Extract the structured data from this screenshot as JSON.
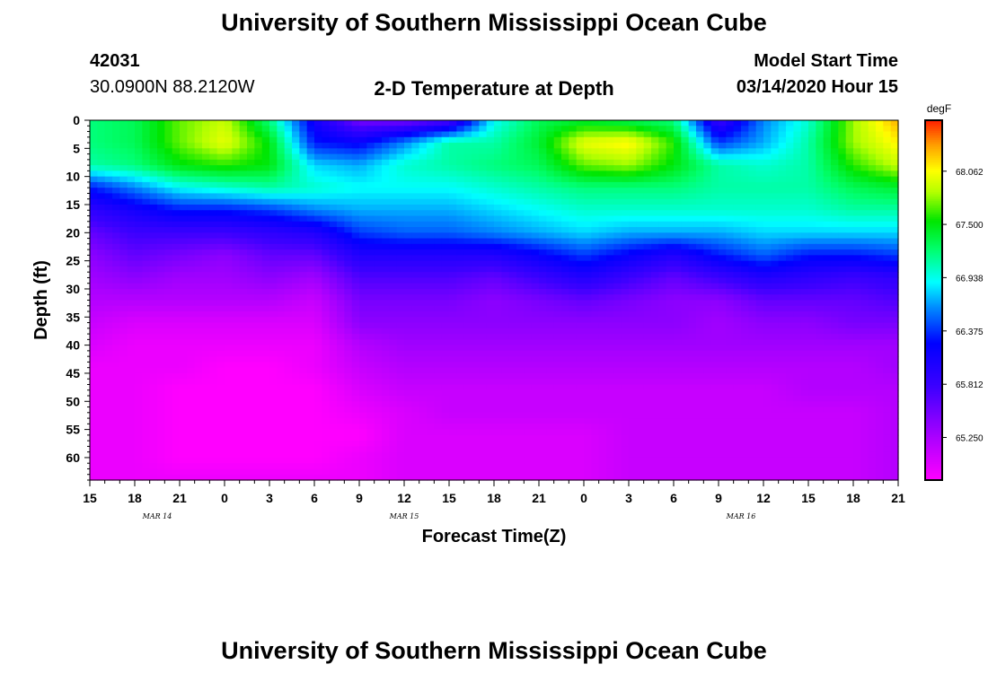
{
  "page": {
    "title_top": "University of Southern Mississippi Ocean Cube",
    "title_bottom": "University of Southern Mississippi Ocean Cube",
    "station_id": "42031",
    "location": "30.0900N 88.2120W",
    "plot_title": "2-D Temperature at Depth",
    "model_start_label": "Model Start Time",
    "model_start_value": "03/14/2020 Hour 15"
  },
  "chart_data": {
    "type": "heatmap",
    "title": "2-D Temperature at Depth",
    "xlabel": "Forecast Time(Z)",
    "ylabel": "Depth (ft)",
    "x_range_hours": [
      0,
      54
    ],
    "y_range_ft": [
      0,
      64
    ],
    "x_tick_labels": [
      "15",
      "18",
      "21",
      "0",
      "3",
      "6",
      "9",
      "12",
      "15",
      "18",
      "21",
      "0",
      "3",
      "6",
      "9",
      "12",
      "15",
      "18",
      "21"
    ],
    "x_day_labels": [
      {
        "label": "MAR 14",
        "hour": 4.5
      },
      {
        "label": "MAR 15",
        "hour": 21
      },
      {
        "label": "MAR 16",
        "hour": 43.5
      }
    ],
    "y_ticks": [
      0,
      5,
      10,
      15,
      20,
      25,
      30,
      35,
      40,
      45,
      50,
      55,
      60
    ],
    "colorbar": {
      "unit": "degF",
      "min": 64.8,
      "max": 68.6,
      "labels": [
        "68.062",
        "67.500",
        "66.938",
        "66.375",
        "65.812",
        "65.250"
      ]
    },
    "sample_hours": [
      0,
      3,
      6,
      9,
      12,
      15,
      18,
      21,
      24,
      27,
      30,
      33,
      36,
      39,
      42,
      45,
      48,
      51,
      54
    ],
    "sample_depths_ft": [
      0,
      4,
      8,
      12,
      16,
      20,
      24,
      28,
      32,
      36,
      40,
      44,
      48,
      52,
      56,
      60,
      64
    ],
    "values_degF": [
      [
        67.2,
        67.3,
        67.7,
        67.9,
        67.2,
        66.1,
        65.5,
        65.5,
        65.7,
        66.9,
        67.3,
        67.4,
        67.3,
        67.2,
        65.8,
        66.6,
        67.0,
        67.8,
        68.3
      ],
      [
        67.2,
        67.3,
        67.7,
        68.0,
        67.5,
        66.3,
        66.2,
        66.6,
        67.1,
        67.1,
        67.4,
        68.0,
        68.1,
        67.6,
        66.4,
        66.7,
        67.1,
        67.8,
        68.1
      ],
      [
        67.1,
        67.2,
        67.5,
        67.6,
        67.5,
        66.8,
        66.7,
        67.0,
        67.1,
        67.2,
        67.3,
        67.7,
        67.8,
        67.5,
        67.1,
        67.0,
        67.1,
        67.6,
        67.9
      ],
      [
        66.3,
        66.6,
        66.9,
        67.0,
        67.1,
        67.0,
        66.9,
        66.9,
        66.9,
        67.0,
        67.1,
        67.2,
        67.2,
        67.2,
        67.1,
        67.1,
        67.1,
        67.3,
        67.4
      ],
      [
        65.9,
        66.1,
        66.3,
        66.3,
        66.4,
        66.6,
        66.7,
        66.7,
        66.7,
        66.8,
        66.9,
        67.0,
        67.0,
        67.0,
        67.0,
        67.0,
        67.0,
        67.1,
        67.1
      ],
      [
        65.6,
        65.8,
        65.8,
        65.8,
        65.9,
        66.0,
        66.4,
        66.5,
        66.5,
        66.6,
        66.7,
        66.8,
        66.7,
        66.7,
        66.7,
        66.8,
        66.8,
        66.8,
        66.8
      ],
      [
        65.4,
        65.6,
        65.5,
        65.4,
        65.6,
        65.6,
        66.0,
        66.0,
        66.0,
        66.0,
        66.2,
        66.4,
        66.2,
        66.0,
        66.3,
        66.5,
        66.3,
        66.3,
        66.4
      ],
      [
        65.3,
        65.4,
        65.3,
        65.3,
        65.4,
        65.3,
        65.7,
        65.7,
        65.7,
        65.6,
        65.8,
        66.0,
        65.8,
        65.6,
        65.8,
        66.0,
        65.9,
        65.8,
        65.9
      ],
      [
        65.2,
        65.2,
        65.2,
        65.2,
        65.2,
        65.1,
        65.5,
        65.5,
        65.5,
        65.4,
        65.5,
        65.6,
        65.5,
        65.4,
        65.4,
        65.6,
        65.6,
        65.6,
        65.7
      ],
      [
        65.1,
        65.0,
        65.0,
        65.0,
        65.0,
        65.0,
        65.4,
        65.4,
        65.4,
        65.4,
        65.4,
        65.4,
        65.4,
        65.4,
        65.3,
        65.4,
        65.4,
        65.5,
        65.5
      ],
      [
        65.0,
        64.9,
        64.9,
        64.9,
        64.9,
        64.9,
        65.2,
        65.3,
        65.3,
        65.3,
        65.3,
        65.3,
        65.3,
        65.3,
        65.3,
        65.3,
        65.3,
        65.3,
        65.3
      ],
      [
        64.9,
        64.9,
        64.9,
        64.8,
        64.8,
        64.9,
        65.1,
        65.2,
        65.2,
        65.2,
        65.2,
        65.2,
        65.2,
        65.2,
        65.2,
        65.2,
        65.2,
        65.2,
        65.3
      ],
      [
        64.9,
        64.9,
        64.8,
        64.8,
        64.8,
        64.8,
        65.0,
        65.1,
        65.1,
        65.1,
        65.1,
        65.1,
        65.1,
        65.1,
        65.1,
        65.1,
        65.2,
        65.2,
        65.2
      ],
      [
        64.9,
        64.9,
        64.8,
        64.8,
        64.8,
        64.8,
        64.9,
        65.0,
        65.1,
        65.1,
        65.1,
        65.1,
        65.1,
        65.1,
        65.1,
        65.1,
        65.1,
        65.1,
        65.2
      ],
      [
        64.9,
        64.9,
        64.8,
        64.8,
        64.8,
        64.8,
        64.8,
        65.0,
        65.0,
        65.0,
        65.0,
        65.0,
        65.1,
        65.1,
        65.1,
        65.1,
        65.1,
        65.1,
        65.2
      ],
      [
        64.9,
        64.9,
        64.8,
        64.8,
        64.8,
        64.8,
        64.9,
        65.0,
        65.0,
        65.0,
        65.0,
        65.0,
        65.1,
        65.1,
        65.1,
        65.1,
        65.1,
        65.1,
        65.2
      ],
      [
        64.9,
        64.9,
        64.9,
        64.9,
        64.9,
        64.9,
        64.9,
        65.0,
        65.0,
        65.0,
        65.0,
        65.0,
        65.1,
        65.1,
        65.1,
        65.1,
        65.1,
        65.1,
        65.2
      ]
    ]
  }
}
